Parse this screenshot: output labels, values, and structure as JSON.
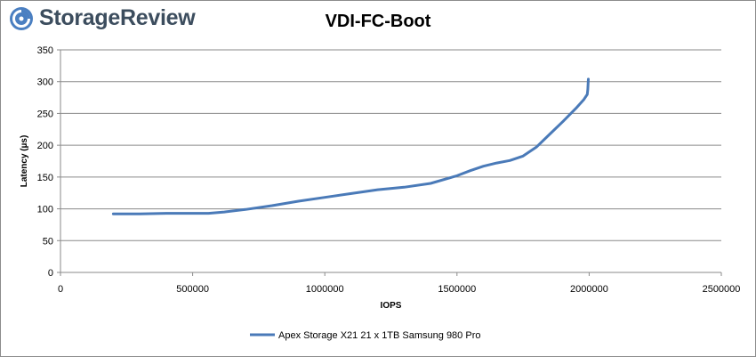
{
  "brand": {
    "name": "StorageReview",
    "accent": "#4a7fc1",
    "text_color": "#3c4d5e"
  },
  "chart_data": {
    "type": "line",
    "title": "VDI-FC-Boot",
    "xlabel": "IOPS",
    "ylabel": "Latency (µs)",
    "xlim": [
      0,
      2500000
    ],
    "ylim": [
      0,
      350
    ],
    "xticks": [
      0,
      500000,
      1000000,
      1500000,
      2000000,
      2500000
    ],
    "yticks": [
      0,
      50,
      100,
      150,
      200,
      250,
      300,
      350
    ],
    "grid": true,
    "legend_position": "bottom",
    "series": [
      {
        "name": "Apex Storage X21 21 x 1TB Samsung 980 Pro",
        "color": "#4a7ab8",
        "x": [
          200000,
          300000,
          400000,
          500000,
          560000,
          620000,
          700000,
          800000,
          900000,
          1000000,
          1100000,
          1200000,
          1300000,
          1400000,
          1500000,
          1550000,
          1600000,
          1650000,
          1700000,
          1750000,
          1800000,
          1850000,
          1900000,
          1950000,
          1980000,
          1993000,
          1995000,
          1996000,
          1997000
        ],
        "y": [
          92,
          92,
          93,
          93,
          93,
          95,
          99,
          105,
          112,
          118,
          124,
          130,
          134,
          140,
          152,
          160,
          167,
          172,
          176,
          183,
          197,
          217,
          237,
          258,
          272,
          280,
          288,
          296,
          304
        ]
      }
    ]
  }
}
